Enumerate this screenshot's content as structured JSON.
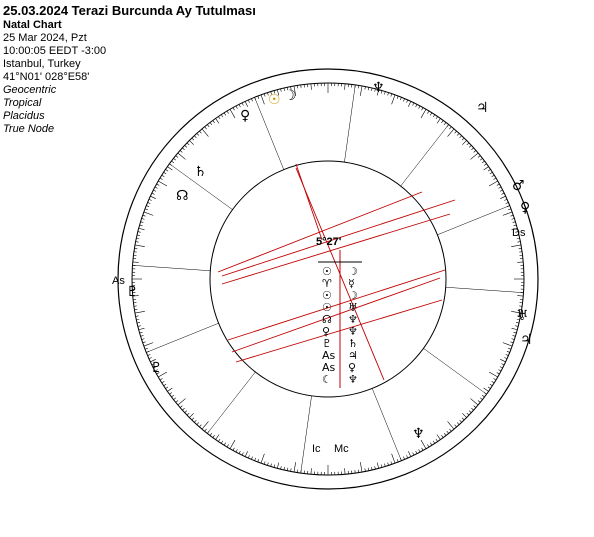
{
  "header": {
    "title": "25.03.2024 Terazi Burcunda Ay Tutulması",
    "chart_type": "Natal Chart",
    "date_line": "25 Mar 2024, Pzt",
    "time_line": "10:00:05  EEDT -3:00",
    "place": "Istanbul, Turkey",
    "coords": "41°N01' 028°E58'",
    "settings": [
      "Geocentric",
      "Tropical",
      "Placidus",
      "True Node"
    ]
  },
  "wheel": {
    "center_label": "5°27'",
    "angles": {
      "asc": "As",
      "desc": "Ds",
      "mc": "Mc",
      "ic": "Ic"
    },
    "dispositor_rows": [
      [
        "☉",
        "☽"
      ],
      [
        "♈",
        "☿"
      ],
      [
        "☉",
        "☽"
      ],
      [
        "☉",
        "♅"
      ],
      [
        "☊",
        "♆"
      ],
      [
        "♀",
        "♆"
      ],
      [
        "♇",
        "♄"
      ],
      [
        "As",
        "♃"
      ],
      [
        "As",
        "♀"
      ],
      [
        "☾",
        "♆"
      ]
    ],
    "colors": {
      "aspect_red": "#c00000",
      "fire": "#cc0000",
      "earth": "#996600",
      "air": "#336600",
      "water": "#0000cc"
    }
  }
}
